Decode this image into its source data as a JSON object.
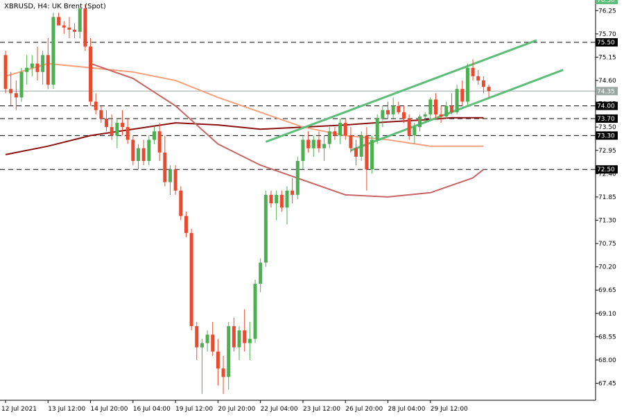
{
  "chart_data": {
    "type": "candlestick",
    "title": "XBRUSD, H4:  UK Brent (Spot)",
    "symbol": "XBRUSD",
    "timeframe": "H4",
    "instrument": "UK Brent (Spot)",
    "ylim": [
      67.05,
      76.5
    ],
    "y_ticks": [
      "76.25",
      "75.70",
      "75.15",
      "74.60",
      "74.05",
      "73.50",
      "72.95",
      "72.40",
      "71.85",
      "71.30",
      "70.75",
      "70.20",
      "69.65",
      "69.10",
      "68.55",
      "68.00",
      "67.45"
    ],
    "x_ticks": [
      "12 Jul 2021",
      "13 Jul 12:00",
      "14 Jul 20:00",
      "16 Jul 04:00",
      "19 Jul 12:00",
      "20 Jul 20:00",
      "22 Jul 04:00",
      "23 Jul 12:00",
      "26 Jul 20:00",
      "28 Jul 04:00",
      "29 Jul 12:00"
    ],
    "x_tick_index": [
      0,
      8,
      16,
      24,
      32,
      40,
      48,
      56,
      64,
      72,
      80
    ],
    "current_price": {
      "value": 74.35,
      "label": "74.35"
    },
    "top_price": {
      "value": 76.5,
      "label": "76.50"
    },
    "levels": [
      {
        "value": 75.5,
        "label": "75.50"
      },
      {
        "value": 74.0,
        "label": "74.00"
      },
      {
        "value": 73.7,
        "label": "73.70"
      },
      {
        "value": 73.3,
        "label": "73.30"
      },
      {
        "value": 72.5,
        "label": "72.50"
      }
    ],
    "candles": [
      {
        "o": 75.2,
        "h": 75.3,
        "l": 74.3,
        "c": 74.4
      },
      {
        "o": 74.4,
        "h": 74.8,
        "l": 74.0,
        "c": 74.3
      },
      {
        "o": 74.3,
        "h": 74.6,
        "l": 73.9,
        "c": 74.2
      },
      {
        "o": 74.2,
        "h": 74.9,
        "l": 74.1,
        "c": 74.8
      },
      {
        "o": 74.8,
        "h": 75.2,
        "l": 74.5,
        "c": 74.9
      },
      {
        "o": 74.9,
        "h": 75.2,
        "l": 74.7,
        "c": 75.0
      },
      {
        "o": 75.0,
        "h": 75.4,
        "l": 74.6,
        "c": 74.8
      },
      {
        "o": 74.8,
        "h": 75.3,
        "l": 74.5,
        "c": 75.2
      },
      {
        "o": 75.2,
        "h": 75.6,
        "l": 74.4,
        "c": 74.5
      },
      {
        "o": 74.5,
        "h": 76.2,
        "l": 74.4,
        "c": 76.1
      },
      {
        "o": 76.1,
        "h": 76.2,
        "l": 75.9,
        "c": 75.9
      },
      {
        "o": 75.9,
        "h": 76.0,
        "l": 75.7,
        "c": 75.85
      },
      {
        "o": 75.85,
        "h": 76.1,
        "l": 75.6,
        "c": 75.8
      },
      {
        "o": 75.8,
        "h": 75.95,
        "l": 75.6,
        "c": 75.75
      },
      {
        "o": 75.75,
        "h": 76.3,
        "l": 75.6,
        "c": 76.3
      },
      {
        "o": 76.3,
        "h": 76.4,
        "l": 75.3,
        "c": 75.4
      },
      {
        "o": 75.4,
        "h": 75.6,
        "l": 74.0,
        "c": 74.1
      },
      {
        "o": 74.1,
        "h": 74.3,
        "l": 73.8,
        "c": 73.9
      },
      {
        "o": 73.9,
        "h": 74.0,
        "l": 73.6,
        "c": 73.7
      },
      {
        "o": 73.7,
        "h": 73.9,
        "l": 73.4,
        "c": 73.5
      },
      {
        "o": 73.5,
        "h": 73.8,
        "l": 73.2,
        "c": 73.3
      },
      {
        "o": 73.3,
        "h": 73.7,
        "l": 73.0,
        "c": 73.6
      },
      {
        "o": 73.6,
        "h": 73.9,
        "l": 73.3,
        "c": 73.5
      },
      {
        "o": 73.5,
        "h": 73.7,
        "l": 73.1,
        "c": 73.2
      },
      {
        "o": 73.2,
        "h": 73.3,
        "l": 72.6,
        "c": 72.7
      },
      {
        "o": 72.7,
        "h": 73.1,
        "l": 72.5,
        "c": 73.0
      },
      {
        "o": 73.0,
        "h": 73.2,
        "l": 72.6,
        "c": 72.7
      },
      {
        "o": 72.7,
        "h": 73.3,
        "l": 72.6,
        "c": 73.2
      },
      {
        "o": 73.2,
        "h": 73.5,
        "l": 73.1,
        "c": 73.4
      },
      {
        "o": 73.4,
        "h": 73.6,
        "l": 72.7,
        "c": 72.9
      },
      {
        "o": 72.9,
        "h": 73.3,
        "l": 72.1,
        "c": 72.2
      },
      {
        "o": 72.2,
        "h": 72.6,
        "l": 71.9,
        "c": 72.5
      },
      {
        "o": 72.5,
        "h": 72.6,
        "l": 71.9,
        "c": 72.0
      },
      {
        "o": 72.0,
        "h": 72.1,
        "l": 71.3,
        "c": 71.4
      },
      {
        "o": 71.4,
        "h": 71.5,
        "l": 70.9,
        "c": 71.0
      },
      {
        "o": 71.0,
        "h": 71.1,
        "l": 68.7,
        "c": 68.8
      },
      {
        "o": 68.8,
        "h": 68.9,
        "l": 68.0,
        "c": 68.3
      },
      {
        "o": 68.3,
        "h": 68.5,
        "l": 67.2,
        "c": 68.4
      },
      {
        "o": 68.4,
        "h": 68.7,
        "l": 68.2,
        "c": 68.6
      },
      {
        "o": 68.6,
        "h": 68.9,
        "l": 68.1,
        "c": 68.2
      },
      {
        "o": 68.2,
        "h": 68.5,
        "l": 67.4,
        "c": 67.8
      },
      {
        "o": 67.8,
        "h": 68.1,
        "l": 67.2,
        "c": 67.6
      },
      {
        "o": 67.6,
        "h": 68.9,
        "l": 67.3,
        "c": 68.8
      },
      {
        "o": 68.8,
        "h": 69.0,
        "l": 68.2,
        "c": 68.3
      },
      {
        "o": 68.3,
        "h": 68.8,
        "l": 68.0,
        "c": 68.7
      },
      {
        "o": 68.7,
        "h": 69.2,
        "l": 68.2,
        "c": 68.4
      },
      {
        "o": 68.4,
        "h": 68.9,
        "l": 68.0,
        "c": 68.5
      },
      {
        "o": 68.5,
        "h": 69.9,
        "l": 68.4,
        "c": 69.8
      },
      {
        "o": 69.8,
        "h": 70.4,
        "l": 69.6,
        "c": 70.3
      },
      {
        "o": 70.3,
        "h": 72.0,
        "l": 70.2,
        "c": 71.9
      },
      {
        "o": 71.9,
        "h": 72.0,
        "l": 71.6,
        "c": 71.7
      },
      {
        "o": 71.7,
        "h": 72.0,
        "l": 71.3,
        "c": 71.9
      },
      {
        "o": 71.9,
        "h": 72.0,
        "l": 71.5,
        "c": 71.6
      },
      {
        "o": 71.6,
        "h": 72.1,
        "l": 71.2,
        "c": 72.0
      },
      {
        "o": 72.0,
        "h": 72.3,
        "l": 71.7,
        "c": 71.9
      },
      {
        "o": 71.9,
        "h": 72.8,
        "l": 71.8,
        "c": 72.7
      },
      {
        "o": 72.7,
        "h": 73.3,
        "l": 72.5,
        "c": 73.2
      },
      {
        "o": 73.2,
        "h": 73.4,
        "l": 72.9,
        "c": 73.0
      },
      {
        "o": 73.0,
        "h": 73.3,
        "l": 72.8,
        "c": 73.2
      },
      {
        "o": 73.2,
        "h": 73.4,
        "l": 72.9,
        "c": 73.0
      },
      {
        "o": 73.0,
        "h": 73.3,
        "l": 72.7,
        "c": 73.1
      },
      {
        "o": 73.1,
        "h": 73.5,
        "l": 73.0,
        "c": 73.4
      },
      {
        "o": 73.4,
        "h": 73.5,
        "l": 73.2,
        "c": 73.3
      },
      {
        "o": 73.3,
        "h": 73.7,
        "l": 73.1,
        "c": 73.6
      },
      {
        "o": 73.6,
        "h": 73.7,
        "l": 73.2,
        "c": 73.3
      },
      {
        "o": 73.3,
        "h": 73.5,
        "l": 72.9,
        "c": 73.0
      },
      {
        "o": 73.0,
        "h": 73.2,
        "l": 72.6,
        "c": 72.8
      },
      {
        "o": 72.8,
        "h": 73.4,
        "l": 72.7,
        "c": 73.3
      },
      {
        "o": 73.3,
        "h": 73.5,
        "l": 72.0,
        "c": 72.5
      },
      {
        "o": 72.5,
        "h": 73.3,
        "l": 72.4,
        "c": 73.2
      },
      {
        "o": 73.2,
        "h": 73.8,
        "l": 73.1,
        "c": 73.7
      },
      {
        "o": 73.7,
        "h": 74.0,
        "l": 73.5,
        "c": 73.9
      },
      {
        "o": 73.9,
        "h": 74.1,
        "l": 73.7,
        "c": 73.8
      },
      {
        "o": 73.8,
        "h": 74.2,
        "l": 73.7,
        "c": 74.0
      },
      {
        "o": 74.0,
        "h": 74.1,
        "l": 73.8,
        "c": 73.85
      },
      {
        "o": 73.85,
        "h": 74.0,
        "l": 73.6,
        "c": 73.7
      },
      {
        "o": 73.7,
        "h": 73.8,
        "l": 73.2,
        "c": 73.3
      },
      {
        "o": 73.3,
        "h": 73.6,
        "l": 73.1,
        "c": 73.5
      },
      {
        "o": 73.5,
        "h": 73.8,
        "l": 73.4,
        "c": 73.75
      },
      {
        "o": 73.75,
        "h": 73.85,
        "l": 73.6,
        "c": 73.8
      },
      {
        "o": 73.8,
        "h": 74.2,
        "l": 73.7,
        "c": 74.15
      },
      {
        "o": 74.15,
        "h": 74.3,
        "l": 73.7,
        "c": 73.8
      },
      {
        "o": 73.8,
        "h": 74.0,
        "l": 73.6,
        "c": 73.75
      },
      {
        "o": 73.75,
        "h": 74.1,
        "l": 73.7,
        "c": 74.0
      },
      {
        "o": 74.0,
        "h": 74.3,
        "l": 73.8,
        "c": 73.85
      },
      {
        "o": 73.85,
        "h": 74.5,
        "l": 73.8,
        "c": 74.4
      },
      {
        "o": 74.4,
        "h": 74.6,
        "l": 74.0,
        "c": 74.1
      },
      {
        "o": 74.1,
        "h": 75.0,
        "l": 74.0,
        "c": 74.9
      },
      {
        "o": 74.9,
        "h": 75.1,
        "l": 74.6,
        "c": 74.7
      },
      {
        "o": 74.7,
        "h": 74.85,
        "l": 74.5,
        "c": 74.6
      },
      {
        "o": 74.6,
        "h": 74.7,
        "l": 74.3,
        "c": 74.45
      },
      {
        "o": 74.45,
        "h": 74.5,
        "l": 74.2,
        "c": 74.35
      }
    ],
    "series": [
      {
        "color": "#8b1010",
        "values": [
          [
            0,
            72.85
          ],
          [
            8,
            73.05
          ],
          [
            16,
            73.3
          ],
          [
            24,
            73.45
          ],
          [
            32,
            73.6
          ],
          [
            40,
            73.55
          ],
          [
            48,
            73.45
          ],
          [
            56,
            73.5
          ],
          [
            64,
            73.55
          ],
          [
            72,
            73.62
          ],
          [
            80,
            73.68
          ],
          [
            84,
            73.72
          ],
          [
            90,
            73.72
          ]
        ]
      },
      {
        "color": "#f4a07a",
        "values": [
          [
            0,
            74.7
          ],
          [
            8,
            75.0
          ],
          [
            16,
            74.9
          ],
          [
            24,
            74.8
          ],
          [
            32,
            74.6
          ],
          [
            40,
            74.2
          ],
          [
            48,
            73.85
          ],
          [
            56,
            73.5
          ],
          [
            64,
            73.3
          ],
          [
            72,
            73.2
          ],
          [
            80,
            73.05
          ],
          [
            90,
            73.05
          ]
        ]
      },
      {
        "color": "#c86464",
        "values": [
          [
            16,
            75.0
          ],
          [
            24,
            74.65
          ],
          [
            32,
            74.0
          ],
          [
            40,
            73.1
          ],
          [
            48,
            72.6
          ],
          [
            56,
            72.25
          ],
          [
            64,
            71.9
          ],
          [
            72,
            71.85
          ],
          [
            80,
            71.95
          ],
          [
            88,
            72.3
          ],
          [
            90,
            72.5
          ]
        ]
      },
      {
        "color": "#5cbe78",
        "values": [
          [
            49,
            73.15
          ],
          [
            100,
            75.55
          ]
        ]
      },
      {
        "color": "#5cbe78",
        "values": [
          [
            65,
            72.95
          ],
          [
            105,
            74.85
          ]
        ]
      }
    ]
  }
}
